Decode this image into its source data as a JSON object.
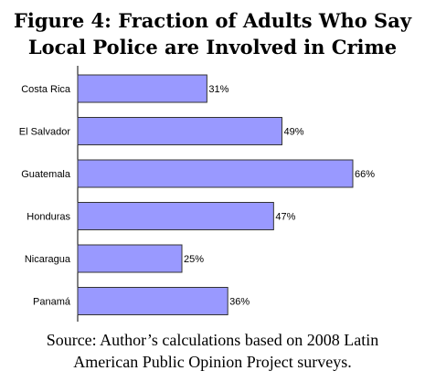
{
  "title_line1": "Figure 4: Fraction of Adults Who Say",
  "title_line2": "Local Police are Involved in Crime",
  "source_line1": "Source: Author’s calculations based on 2008 Latin",
  "source_line2": "American Public Opinion Project surveys.",
  "chart_data": {
    "type": "bar",
    "orientation": "horizontal",
    "categories": [
      "Costa Rica",
      "El Salvador",
      "Guatemala",
      "Honduras",
      "Nicaragua",
      "Panamá"
    ],
    "values": [
      31,
      49,
      66,
      47,
      25,
      36
    ],
    "data_labels": [
      "31%",
      "49%",
      "66%",
      "47%",
      "25%",
      "36%"
    ],
    "unit": "%",
    "xlim": [
      0,
      66
    ],
    "bar_color": "#9999FF",
    "bar_stroke": "#333333",
    "grid": false,
    "legend": "none"
  }
}
